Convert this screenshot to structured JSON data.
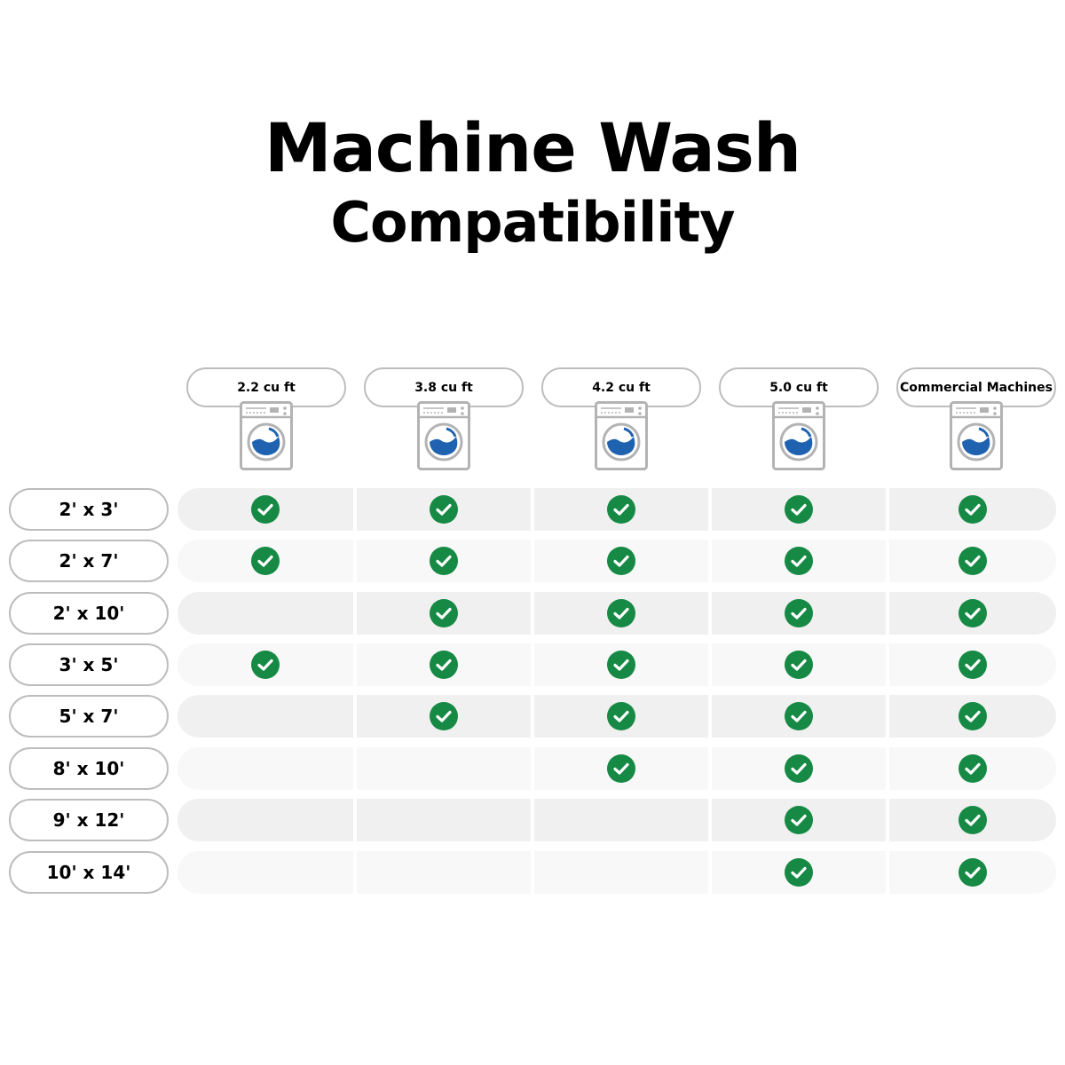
{
  "title": {
    "line1": "Machine Wash",
    "line2": "Compatibility"
  },
  "colors": {
    "check": "#168a45",
    "washer_water": "#1f63b0",
    "washer_outline": "#b3b3b3",
    "row_dark": "#f0f0f0",
    "row_light": "#f8f8f8"
  },
  "icons": {
    "column": "washing-machine-icon",
    "cell": "check-circle-icon"
  },
  "columns": [
    {
      "label": "2.2 cu ft"
    },
    {
      "label": "3.8 cu ft"
    },
    {
      "label": "4.2 cu ft"
    },
    {
      "label": "5.0 cu ft"
    },
    {
      "label": "Commercial Machines"
    }
  ],
  "rows": [
    {
      "label": "2' x 3'",
      "compatible": [
        true,
        true,
        true,
        true,
        true
      ]
    },
    {
      "label": "2' x 7'",
      "compatible": [
        true,
        true,
        true,
        true,
        true
      ]
    },
    {
      "label": "2' x 10'",
      "compatible": [
        false,
        true,
        true,
        true,
        true
      ]
    },
    {
      "label": "3' x 5'",
      "compatible": [
        true,
        true,
        true,
        true,
        true
      ]
    },
    {
      "label": "5' x 7'",
      "compatible": [
        false,
        true,
        true,
        true,
        true
      ]
    },
    {
      "label": "8' x 10'",
      "compatible": [
        false,
        false,
        true,
        true,
        true
      ]
    },
    {
      "label": "9' x 12'",
      "compatible": [
        false,
        false,
        false,
        true,
        true
      ]
    },
    {
      "label": "10' x 14'",
      "compatible": [
        false,
        false,
        false,
        true,
        true
      ]
    }
  ]
}
